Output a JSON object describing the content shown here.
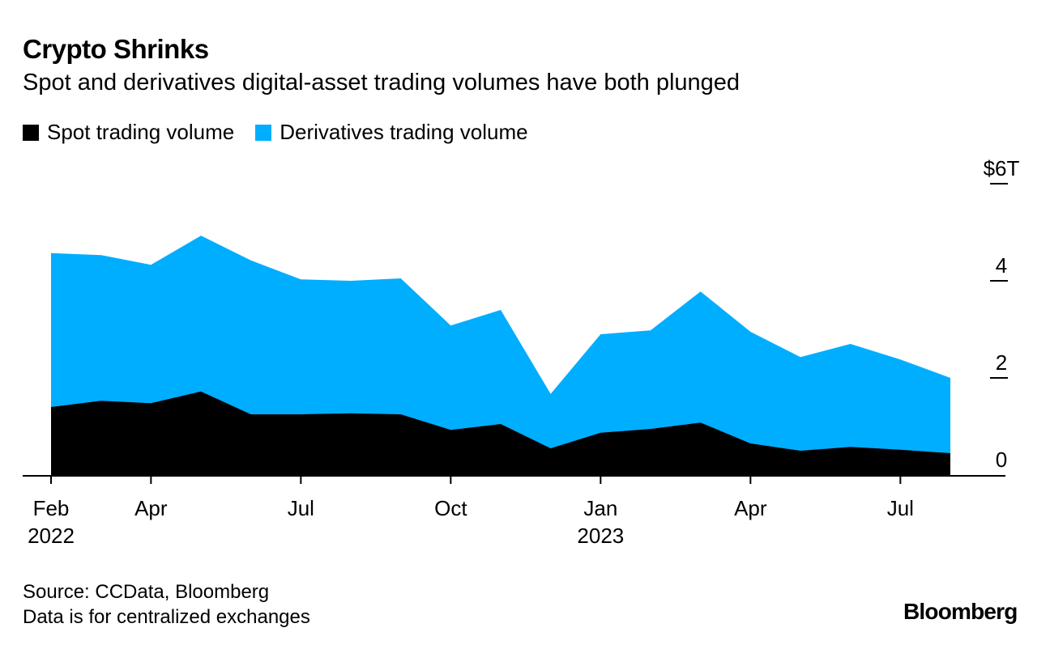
{
  "chart_data": {
    "type": "area",
    "stacked": true,
    "title": "Crypto Shrinks",
    "subtitle": "Spot and derivatives digital-asset trading volumes have both plunged",
    "categories": [
      "2022-02",
      "2022-03",
      "2022-04",
      "2022-05",
      "2022-06",
      "2022-07",
      "2022-08",
      "2022-09",
      "2022-10",
      "2022-11",
      "2022-12",
      "2023-01",
      "2023-02",
      "2023-03",
      "2023-04",
      "2023-05",
      "2023-06",
      "2023-07",
      "2023-08"
    ],
    "series": [
      {
        "name": "Spot trading volume",
        "color": "#000000",
        "values": [
          1.4,
          1.53,
          1.48,
          1.72,
          1.25,
          1.25,
          1.27,
          1.25,
          0.93,
          1.05,
          0.55,
          0.87,
          0.95,
          1.08,
          0.65,
          0.5,
          0.58,
          0.52,
          0.45
        ]
      },
      {
        "name": "Derivatives trading volume",
        "color": "#00aeff",
        "values": [
          3.17,
          3.0,
          2.85,
          3.21,
          3.17,
          2.78,
          2.73,
          2.8,
          2.15,
          2.35,
          1.12,
          2.03,
          2.03,
          2.7,
          2.3,
          1.93,
          2.12,
          1.86,
          1.55
        ]
      }
    ],
    "ylim": [
      0,
      6
    ],
    "y_ticks": [
      {
        "value": 0,
        "label": "0"
      },
      {
        "value": 2,
        "label": "2"
      },
      {
        "value": 4,
        "label": "4"
      },
      {
        "value": 6,
        "label": "$6T"
      }
    ],
    "x_ticks": [
      {
        "index": 0,
        "label": "Feb",
        "sublabel": "2022"
      },
      {
        "index": 2,
        "label": "Apr",
        "sublabel": ""
      },
      {
        "index": 5,
        "label": "Jul",
        "sublabel": ""
      },
      {
        "index": 8,
        "label": "Oct",
        "sublabel": ""
      },
      {
        "index": 11,
        "label": "Jan",
        "sublabel": "2023"
      },
      {
        "index": 14,
        "label": "Apr",
        "sublabel": ""
      },
      {
        "index": 17,
        "label": "Jul",
        "sublabel": ""
      }
    ],
    "y_axis_position": "right",
    "legend_position": "top-left",
    "grid": false
  },
  "footer": {
    "source": "Source: CCData, Bloomberg",
    "note": "Data is for centralized exchanges"
  },
  "logo": "Bloomberg"
}
